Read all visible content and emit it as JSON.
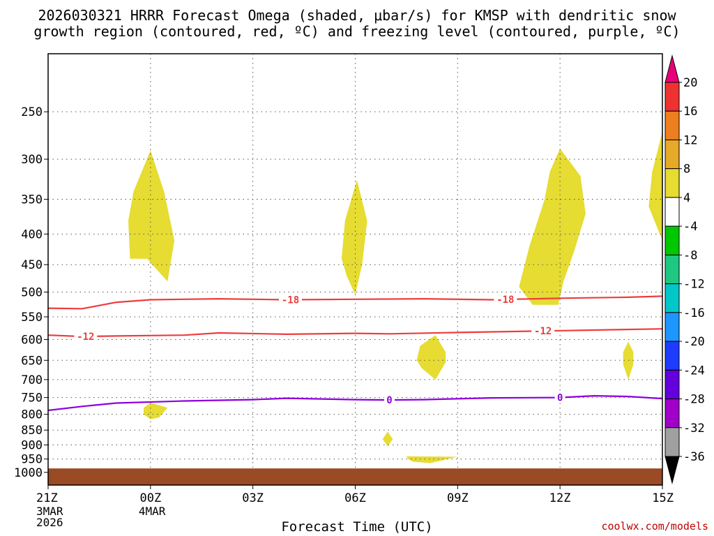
{
  "title_line1": "2026030321 HRRR Forecast Omega (shaded, μbar/s) for KMSP with dendritic snow",
  "title_line2": "growth region (contoured, red, ºC) and freezing level (contoured, purple, ºC)",
  "credit": "coolwx.com/models",
  "chart_data": {
    "type": "time-height cross section",
    "title": "2026030321 HRRR Forecast Omega (shaded, μbar/s) for KMSP with dendritic snow growth region (contoured, red, ºC) and freezing level (contoured, purple, ºC)",
    "xlabel": "Forecast Time (UTC)",
    "ylabel": "",
    "x_unit": "forecast hour",
    "x_range": [
      0,
      18
    ],
    "y_unit": "hPa",
    "y_range": [
      1050,
      200
    ],
    "x_ticks": [
      {
        "hour": 0,
        "label": "21Z",
        "date": [
          "3MAR",
          "2026"
        ]
      },
      {
        "hour": 3,
        "label": "00Z",
        "date": [
          "4MAR"
        ]
      },
      {
        "hour": 6,
        "label": "03Z"
      },
      {
        "hour": 9,
        "label": "06Z"
      },
      {
        "hour": 12,
        "label": "09Z"
      },
      {
        "hour": 15,
        "label": "12Z"
      },
      {
        "hour": 18,
        "label": "15Z"
      }
    ],
    "y_ticks": [
      250,
      300,
      350,
      400,
      450,
      500,
      550,
      600,
      650,
      700,
      750,
      800,
      850,
      900,
      950,
      1000
    ],
    "grid": "dotted",
    "colorbar": {
      "labels": [
        "20",
        "16",
        "12",
        "8",
        "4",
        "-4",
        "-8",
        "-12",
        "-16",
        "-20",
        "-24",
        "-28",
        "-32",
        "-36"
      ],
      "colors": [
        "#e8007a",
        "#ee3232",
        "#ee7f1e",
        "#e6aa28",
        "#e6dc32",
        "#ffffff",
        "#00c800",
        "#1ec882",
        "#00c8c8",
        "#1e96ff",
        "#1e3cff",
        "#6400dc",
        "#a000c8",
        "#a0a0a0",
        "#000000"
      ]
    },
    "omega_regions": [
      {
        "name": "upper-1",
        "level": "4 to 8",
        "points": [
          [
            3.0,
            290
          ],
          [
            3.4,
            340
          ],
          [
            3.7,
            410
          ],
          [
            3.5,
            480
          ],
          [
            2.9,
            440
          ],
          [
            2.4,
            440
          ],
          [
            2.35,
            380
          ],
          [
            2.5,
            340
          ]
        ]
      },
      {
        "name": "upper-2",
        "level": "4 to 8",
        "points": [
          [
            9.05,
            325
          ],
          [
            9.35,
            380
          ],
          [
            9.2,
            450
          ],
          [
            9.0,
            505
          ],
          [
            8.75,
            470
          ],
          [
            8.6,
            440
          ],
          [
            8.7,
            380
          ]
        ]
      },
      {
        "name": "upper-3",
        "level": "4 to 8",
        "points": [
          [
            15.0,
            288
          ],
          [
            15.6,
            320
          ],
          [
            15.75,
            370
          ],
          [
            15.4,
            430
          ],
          [
            15.1,
            480
          ],
          [
            14.95,
            525
          ],
          [
            14.2,
            525
          ],
          [
            13.8,
            490
          ],
          [
            14.1,
            420
          ],
          [
            14.55,
            350
          ],
          [
            14.7,
            315
          ]
        ]
      },
      {
        "name": "upper-4",
        "level": "4 to 8",
        "points": [
          [
            18.0,
            270
          ],
          [
            17.7,
            315
          ],
          [
            17.6,
            360
          ],
          [
            18.0,
            410
          ]
        ]
      },
      {
        "name": "mid-1",
        "level": "4 to 8",
        "points": [
          [
            11.35,
            590
          ],
          [
            11.65,
            630
          ],
          [
            11.65,
            655
          ],
          [
            11.35,
            700
          ],
          [
            10.95,
            670
          ],
          [
            10.8,
            650
          ],
          [
            10.9,
            615
          ]
        ]
      },
      {
        "name": "mid-2",
        "level": "4 to 8",
        "points": [
          [
            17.0,
            605
          ],
          [
            17.15,
            630
          ],
          [
            17.15,
            660
          ],
          [
            17.0,
            700
          ],
          [
            16.85,
            660
          ],
          [
            16.85,
            630
          ]
        ]
      },
      {
        "name": "low-1",
        "level": "4 to 8",
        "points": [
          [
            3.0,
            765
          ],
          [
            3.5,
            780
          ],
          [
            3.25,
            810
          ],
          [
            3.0,
            815
          ],
          [
            2.8,
            800
          ],
          [
            2.8,
            780
          ]
        ]
      },
      {
        "name": "low-2",
        "level": "4 to 8",
        "points": [
          [
            9.95,
            855
          ],
          [
            10.1,
            880
          ],
          [
            9.95,
            905
          ],
          [
            9.8,
            880
          ]
        ]
      },
      {
        "name": "low-3",
        "level": "4 to 8",
        "points": [
          [
            10.5,
            940
          ],
          [
            12.0,
            942
          ],
          [
            11.2,
            965
          ],
          [
            10.7,
            960
          ],
          [
            10.55,
            950
          ]
        ]
      }
    ],
    "contours": [
      {
        "name": "-18 ºC",
        "label": "-18",
        "color": "#ee3c3c",
        "points": [
          [
            0,
            532
          ],
          [
            1,
            533
          ],
          [
            2,
            520
          ],
          [
            3,
            515
          ],
          [
            5,
            513
          ],
          [
            7,
            515
          ],
          [
            9,
            514
          ],
          [
            11,
            513
          ],
          [
            13,
            515
          ],
          [
            15,
            512
          ],
          [
            17,
            510
          ],
          [
            18,
            508
          ]
        ],
        "label_hours": [
          7.1,
          13.4
        ]
      },
      {
        "name": "-12 ºC",
        "label": "-12",
        "color": "#ee3c3c",
        "points": [
          [
            0,
            590
          ],
          [
            1,
            593
          ],
          [
            2,
            592
          ],
          [
            4,
            590
          ],
          [
            5,
            585
          ],
          [
            7,
            588
          ],
          [
            9,
            586
          ],
          [
            10,
            587
          ],
          [
            12,
            584
          ],
          [
            15,
            580
          ],
          [
            18,
            576
          ]
        ],
        "label_hours": [
          1.1,
          14.5
        ]
      },
      {
        "name": "0 ºC",
        "label": "0",
        "color": "#8c00dc",
        "points": [
          [
            0,
            788
          ],
          [
            1,
            776
          ],
          [
            2,
            766
          ],
          [
            4,
            760
          ],
          [
            6,
            756
          ],
          [
            7,
            752
          ],
          [
            9,
            756
          ],
          [
            10,
            757
          ],
          [
            11,
            756
          ],
          [
            13,
            751
          ],
          [
            15,
            750
          ],
          [
            16,
            745
          ],
          [
            17,
            747
          ],
          [
            18,
            753
          ]
        ],
        "label_hours": [
          10.0,
          15.0
        ]
      }
    ],
    "terrain": {
      "label": "surface",
      "color": "#9a4a24",
      "from_pressure": 985
    }
  }
}
